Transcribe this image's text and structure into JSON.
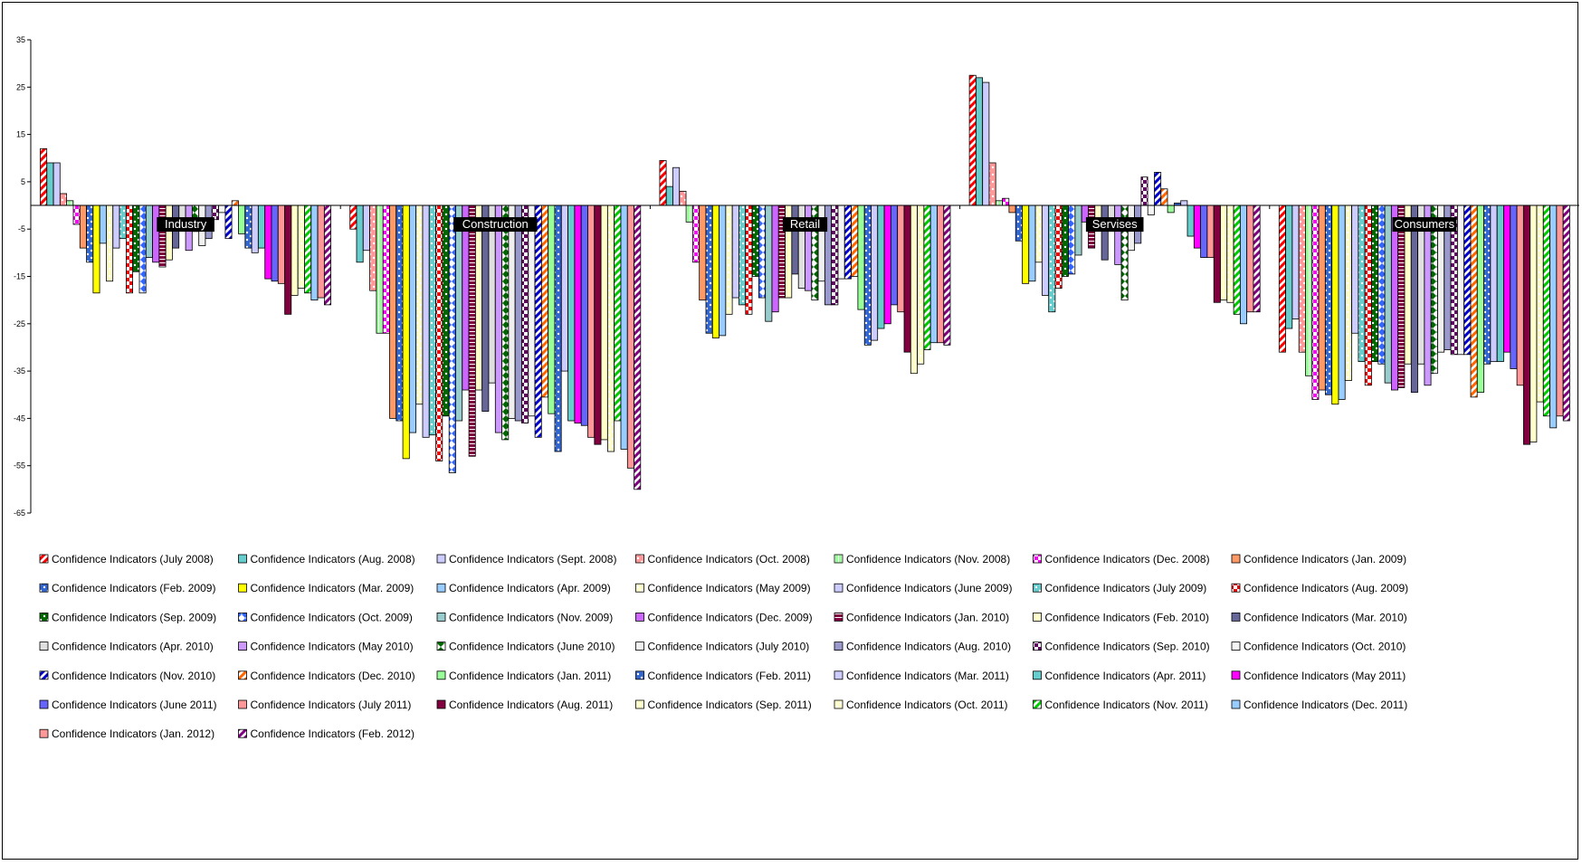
{
  "chart_data": {
    "type": "bar",
    "categories": [
      "Industry",
      "Construction",
      "Retail",
      "Servises",
      "Consumers"
    ],
    "ylim": [
      -65,
      35
    ],
    "yticks": [
      35,
      25,
      15,
      5,
      -5,
      -15,
      -25,
      -35,
      -45,
      -55,
      -65
    ],
    "grid": false,
    "legend_position": "bottom",
    "series": [
      {
        "name": "Confidence Indicators (July 2008)",
        "values": [
          12,
          -5,
          9.5,
          27.5,
          -31
        ],
        "color": "#ff0000",
        "pattern": "diag"
      },
      {
        "name": "Confidence Indicators (Aug. 2008)",
        "values": [
          9,
          -12,
          4,
          27,
          -26
        ],
        "color": "#66cccc",
        "pattern": "solid"
      },
      {
        "name": "Confidence Indicators (Sept. 2008)",
        "values": [
          9,
          -9.5,
          8,
          26,
          -24
        ],
        "color": "#ccccff",
        "pattern": "solid"
      },
      {
        "name": "Confidence Indicators (Oct. 2008)",
        "values": [
          2.5,
          -18,
          3,
          9,
          -31
        ],
        "color": "#ff9999",
        "pattern": "dots"
      },
      {
        "name": "Confidence Indicators (Nov. 2008)",
        "values": [
          1,
          -27,
          -3.5,
          1,
          -36
        ],
        "color": "#99ff99",
        "pattern": "vstripe"
      },
      {
        "name": "Confidence Indicators (Dec. 2008)",
        "values": [
          -4,
          -27,
          -12,
          1.5,
          -41
        ],
        "color": "#ff00ff",
        "pattern": "check"
      },
      {
        "name": "Confidence Indicators (Jan. 2009)",
        "values": [
          -9,
          -45,
          -20,
          -1.5,
          -39
        ],
        "color": "#ff9966",
        "pattern": "solid"
      },
      {
        "name": "Confidence Indicators (Feb. 2009)",
        "values": [
          -12,
          -45.5,
          -27,
          -7.5,
          -40
        ],
        "color": "#3366cc",
        "pattern": "dots"
      },
      {
        "name": "Confidence Indicators (Mar. 2009)",
        "values": [
          -18.5,
          -53.5,
          -28,
          -16.5,
          -42
        ],
        "color": "#ffff00",
        "pattern": "solid"
      },
      {
        "name": "Confidence Indicators (Apr. 2009)",
        "values": [
          -8,
          -48,
          -27.5,
          -16,
          -41
        ],
        "color": "#99ccff",
        "pattern": "solid"
      },
      {
        "name": "Confidence Indicators (May 2009)",
        "values": [
          -16,
          -42,
          -23,
          -12,
          -37
        ],
        "color": "#ffffcc",
        "pattern": "dots"
      },
      {
        "name": "Confidence Indicators (June 2009)",
        "values": [
          -9,
          -49,
          -19.5,
          -19,
          -27
        ],
        "color": "#ccccff",
        "pattern": "solid"
      },
      {
        "name": "Confidence Indicators (July 2009)",
        "values": [
          -7,
          -48.5,
          -21,
          -22.5,
          -33
        ],
        "color": "#66cccc",
        "pattern": "dots"
      },
      {
        "name": "Confidence Indicators (Aug. 2009)",
        "values": [
          -18.5,
          -54,
          -23,
          -17.5,
          -38
        ],
        "color": "#ff0000",
        "pattern": "check"
      },
      {
        "name": "Confidence Indicators (Sep. 2009)",
        "values": [
          -14,
          -44.5,
          -15,
          -15,
          -33
        ],
        "color": "#006600",
        "pattern": "dots"
      },
      {
        "name": "Confidence Indicators (Oct. 2009)",
        "values": [
          -18.5,
          -56.5,
          -19.5,
          -14.5,
          -33.5
        ],
        "color": "#3366ff",
        "pattern": "diamond"
      },
      {
        "name": "Confidence Indicators (Nov. 2009)",
        "values": [
          -11,
          -45.5,
          -24.5,
          -10.5,
          -37.5
        ],
        "color": "#99cccc",
        "pattern": "solid"
      },
      {
        "name": "Confidence Indicators (Dec. 2009)",
        "values": [
          -12,
          -39,
          -22.5,
          -3.5,
          -39
        ],
        "color": "#cc66ff",
        "pattern": "solid"
      },
      {
        "name": "Confidence Indicators (Jan. 2010)",
        "values": [
          -13,
          -53,
          -19.5,
          -9,
          -38.5
        ],
        "color": "#800040",
        "pattern": "hstripe"
      },
      {
        "name": "Confidence Indicators (Feb. 2010)",
        "values": [
          -11.5,
          -39,
          -19.5,
          -3,
          -33.5
        ],
        "color": "#ffffcc",
        "pattern": "solid"
      },
      {
        "name": "Confidence Indicators (Mar. 2010)",
        "values": [
          -9,
          -43.5,
          -14.5,
          -11.5,
          -39.5
        ],
        "color": "#666699",
        "pattern": "solid"
      },
      {
        "name": "Confidence Indicators (Apr. 2010)",
        "values": [
          -3,
          -37.5,
          -17.5,
          -5,
          -33.5
        ],
        "color": "#e0e0e0",
        "pattern": "solid"
      },
      {
        "name": "Confidence Indicators (May 2010)",
        "values": [
          -9.5,
          -48,
          -18,
          -12.5,
          -38
        ],
        "color": "#cc99ff",
        "pattern": "solid"
      },
      {
        "name": "Confidence Indicators (June 2010)",
        "values": [
          -5.5,
          -49.5,
          -20,
          -20,
          -35.5
        ],
        "color": "#006600",
        "pattern": "diamond"
      },
      {
        "name": "Confidence Indicators (July 2010)",
        "values": [
          -8.5,
          -45,
          -16,
          -9.5,
          -31
        ],
        "color": "#f0f0f0",
        "pattern": "solid"
      },
      {
        "name": "Confidence Indicators (Aug. 2010)",
        "values": [
          -7,
          -45.5,
          -21,
          -8,
          -30.5
        ],
        "color": "#9999cc",
        "pattern": "solid"
      },
      {
        "name": "Confidence Indicators (Sep. 2010)",
        "values": [
          -3,
          -46,
          -21,
          6,
          -31.5
        ],
        "color": "#660066",
        "pattern": "check"
      },
      {
        "name": "Confidence Indicators (Oct. 2010)",
        "values": [
          -1.5,
          -44.5,
          -15.5,
          -2,
          -31.5
        ],
        "color": "#f5f5f5",
        "pattern": "solid"
      },
      {
        "name": "Confidence Indicators (Nov. 2010)",
        "values": [
          -7,
          -49,
          -15.5,
          7,
          -31.5
        ],
        "color": "#0000cc",
        "pattern": "diag"
      },
      {
        "name": "Confidence Indicators (Dec. 2010)",
        "values": [
          1,
          -40.5,
          -15,
          3.5,
          -40.5
        ],
        "color": "#ff6600",
        "pattern": "diag"
      },
      {
        "name": "Confidence Indicators (Jan. 2011)",
        "values": [
          -6,
          -44,
          -22,
          -1.5,
          -39.5
        ],
        "color": "#99ff99",
        "pattern": "solid"
      },
      {
        "name": "Confidence Indicators (Feb. 2011)",
        "values": [
          -9,
          -52,
          -29.5,
          0.5,
          -33.5
        ],
        "color": "#3366cc",
        "pattern": "dots"
      },
      {
        "name": "Confidence Indicators (Mar. 2011)",
        "values": [
          -10,
          -35,
          -28.5,
          1,
          -33
        ],
        "color": "#ccccff",
        "pattern": "solid"
      },
      {
        "name": "Confidence Indicators (Apr. 2011)",
        "values": [
          -9,
          -45.5,
          -26,
          -6.5,
          -33
        ],
        "color": "#66cccc",
        "pattern": "solid"
      },
      {
        "name": "Confidence Indicators (May 2011)",
        "values": [
          -15.5,
          -46,
          -25,
          -9,
          -31
        ],
        "color": "#ff00ff",
        "pattern": "solid"
      },
      {
        "name": "Confidence Indicators (June 2011)",
        "values": [
          -16,
          -46.5,
          -21,
          -11,
          -34.5
        ],
        "color": "#6666ff",
        "pattern": "solid"
      },
      {
        "name": "Confidence Indicators (July 2011)",
        "values": [
          -16.5,
          -49,
          -22.5,
          -11,
          -38
        ],
        "color": "#ff9999",
        "pattern": "solid"
      },
      {
        "name": "Confidence Indicators (Aug. 2011)",
        "values": [
          -23,
          -50.5,
          -31,
          -20.5,
          -50.5
        ],
        "color": "#800040",
        "pattern": "solid"
      },
      {
        "name": "Confidence Indicators (Sep. 2011)",
        "values": [
          -19,
          -49.5,
          -35.5,
          -20,
          -50
        ],
        "color": "#ffffcc",
        "pattern": "solid"
      },
      {
        "name": "Confidence Indicators (Oct. 2011)",
        "values": [
          -17.5,
          -52,
          -33.5,
          -20.5,
          -41.5
        ],
        "color": "#ffffcc",
        "pattern": "dots"
      },
      {
        "name": "Confidence Indicators (Nov. 2011)",
        "values": [
          -18.5,
          -45.5,
          -30.5,
          -23,
          -44.5
        ],
        "color": "#00cc00",
        "pattern": "diag"
      },
      {
        "name": "Confidence Indicators (Dec. 2011)",
        "values": [
          -20,
          -51.5,
          -29,
          -25,
          -47
        ],
        "color": "#99ccff",
        "pattern": "solid"
      },
      {
        "name": "Confidence Indicators (Jan. 2012)",
        "values": [
          -19.5,
          -55.5,
          -29,
          -22.5,
          -44.5
        ],
        "color": "#ff9999",
        "pattern": "solid"
      },
      {
        "name": "Confidence Indicators (Feb. 2012)",
        "values": [
          -21,
          -60,
          -29.5,
          -22.5,
          -45.5
        ],
        "color": "#800080",
        "pattern": "diag"
      }
    ]
  }
}
